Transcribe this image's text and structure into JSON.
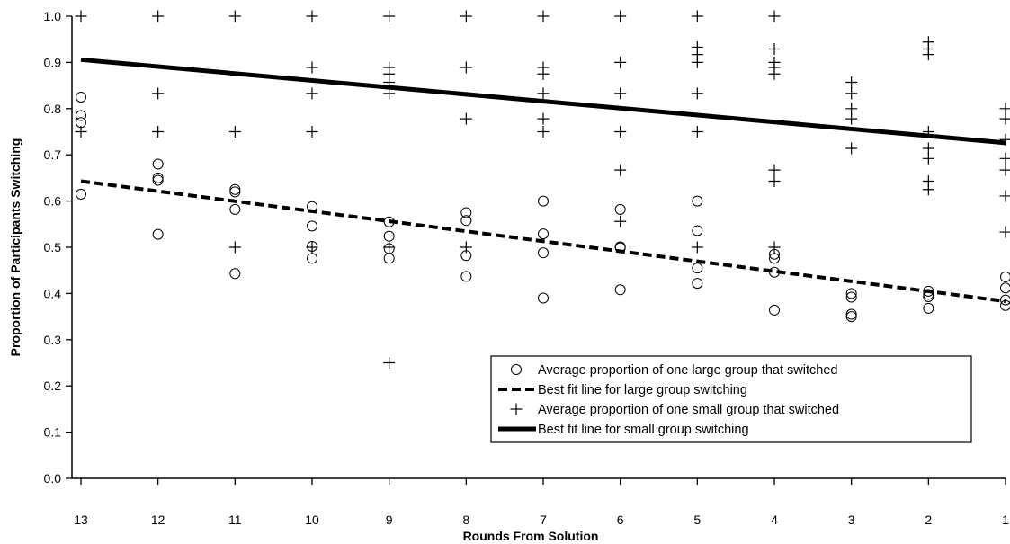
{
  "chart_data": {
    "type": "scatter",
    "xlabel": "Rounds From Solution",
    "ylabel": "Proportion of Participants Switching",
    "x_ticks": [
      13,
      12,
      11,
      10,
      9,
      8,
      7,
      6,
      5,
      4,
      3,
      2,
      1
    ],
    "y_ticks": [
      "0.0",
      "0.1",
      "0.2",
      "0.3",
      "0.4",
      "0.5",
      "0.6",
      "0.7",
      "0.8",
      "0.9",
      "1.0"
    ],
    "xlim": [
      13,
      1
    ],
    "ylim": [
      0,
      1.0
    ],
    "x_reversed": true,
    "grid": false,
    "legend_position": "lower-right",
    "series": [
      {
        "name": "Average proportion of one large group that switched",
        "marker": "circle",
        "points": [
          [
            13,
            0.825
          ],
          [
            13,
            0.785
          ],
          [
            13,
            0.77
          ],
          [
            13,
            0.615
          ],
          [
            12,
            0.68
          ],
          [
            12,
            0.65
          ],
          [
            12,
            0.645
          ],
          [
            12,
            0.528
          ],
          [
            11,
            0.625
          ],
          [
            11,
            0.62
          ],
          [
            11,
            0.582
          ],
          [
            11,
            0.443
          ],
          [
            10,
            0.588
          ],
          [
            10,
            0.546
          ],
          [
            10,
            0.502
          ],
          [
            10,
            0.476
          ],
          [
            9,
            0.555
          ],
          [
            9,
            0.524
          ],
          [
            9,
            0.497
          ],
          [
            9,
            0.476
          ],
          [
            8,
            0.575
          ],
          [
            8,
            0.558
          ],
          [
            8,
            0.482
          ],
          [
            8,
            0.437
          ],
          [
            7,
            0.6
          ],
          [
            7,
            0.529
          ],
          [
            7,
            0.488
          ],
          [
            7,
            0.39
          ],
          [
            6,
            0.582
          ],
          [
            6,
            0.501
          ],
          [
            6,
            0.499
          ],
          [
            6,
            0.408
          ],
          [
            5,
            0.6
          ],
          [
            5,
            0.536
          ],
          [
            5,
            0.455
          ],
          [
            5,
            0.422
          ],
          [
            4,
            0.485
          ],
          [
            4,
            0.476
          ],
          [
            4,
            0.446
          ],
          [
            4,
            0.364
          ],
          [
            3,
            0.4
          ],
          [
            3,
            0.392
          ],
          [
            3,
            0.355
          ],
          [
            3,
            0.35
          ],
          [
            2,
            0.405
          ],
          [
            2,
            0.398
          ],
          [
            2,
            0.393
          ],
          [
            2,
            0.368
          ],
          [
            1,
            0.436
          ],
          [
            1,
            0.412
          ],
          [
            1,
            0.386
          ],
          [
            1,
            0.374
          ]
        ]
      },
      {
        "name": "Best fit line for large group switching",
        "line_style": "dashed",
        "x": [
          13,
          1
        ],
        "y": [
          0.643,
          0.383
        ]
      },
      {
        "name": "Average proportion of one small group that switched",
        "marker": "plus",
        "points": [
          [
            13,
            1.0
          ],
          [
            13,
            0.75
          ],
          [
            12,
            1.0
          ],
          [
            12,
            0.833
          ],
          [
            12,
            0.75
          ],
          [
            11,
            1.0
          ],
          [
            11,
            0.75
          ],
          [
            11,
            0.5
          ],
          [
            10,
            1.0
          ],
          [
            10,
            0.889
          ],
          [
            10,
            0.833
          ],
          [
            10,
            0.75
          ],
          [
            10,
            0.5
          ],
          [
            9,
            1.0
          ],
          [
            9,
            0.889
          ],
          [
            9,
            0.875
          ],
          [
            9,
            0.857
          ],
          [
            9,
            0.833
          ],
          [
            9,
            0.5
          ],
          [
            9,
            0.25
          ],
          [
            8,
            1.0
          ],
          [
            8,
            0.889
          ],
          [
            8,
            0.778
          ],
          [
            8,
            0.5
          ],
          [
            7,
            1.0
          ],
          [
            7,
            0.889
          ],
          [
            7,
            0.875
          ],
          [
            7,
            0.833
          ],
          [
            7,
            0.778
          ],
          [
            7,
            0.75
          ],
          [
            6,
            1.0
          ],
          [
            6,
            0.9
          ],
          [
            6,
            0.833
          ],
          [
            6,
            0.75
          ],
          [
            6,
            0.667
          ],
          [
            6,
            0.556
          ],
          [
            5,
            1.0
          ],
          [
            5,
            0.933
          ],
          [
            5,
            0.917
          ],
          [
            5,
            0.9
          ],
          [
            5,
            0.833
          ],
          [
            5,
            0.75
          ],
          [
            5,
            0.5
          ],
          [
            4,
            1.0
          ],
          [
            4,
            0.929
          ],
          [
            4,
            0.9
          ],
          [
            4,
            0.889
          ],
          [
            4,
            0.875
          ],
          [
            4,
            0.667
          ],
          [
            4,
            0.643
          ],
          [
            4,
            0.5
          ],
          [
            3,
            0.857
          ],
          [
            3,
            0.833
          ],
          [
            3,
            0.8
          ],
          [
            3,
            0.778
          ],
          [
            3,
            0.714
          ],
          [
            2,
            0.944
          ],
          [
            2,
            0.929
          ],
          [
            2,
            0.917
          ],
          [
            2,
            0.75
          ],
          [
            2,
            0.714
          ],
          [
            2,
            0.692
          ],
          [
            2,
            0.643
          ],
          [
            2,
            0.625
          ],
          [
            1,
            0.8
          ],
          [
            1,
            0.778
          ],
          [
            1,
            0.733
          ],
          [
            1,
            0.692
          ],
          [
            1,
            0.667
          ],
          [
            1,
            0.611
          ],
          [
            1,
            0.533
          ]
        ]
      },
      {
        "name": "Best fit line for small group switching",
        "line_style": "solid",
        "x": [
          13,
          1
        ],
        "y": [
          0.906,
          0.726
        ]
      }
    ]
  }
}
